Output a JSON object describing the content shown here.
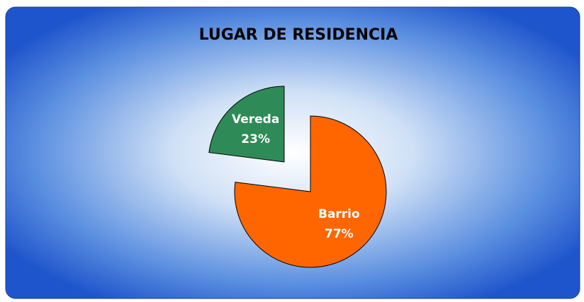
{
  "chart_data": {
    "type": "pie",
    "title": "LUGAR DE RESIDENCIA",
    "categories": [
      "Barrio",
      "Vereda"
    ],
    "values": [
      77,
      23
    ],
    "value_labels": [
      "77%",
      "23%"
    ],
    "colors": [
      "#ff6600",
      "#2e8b57"
    ]
  }
}
